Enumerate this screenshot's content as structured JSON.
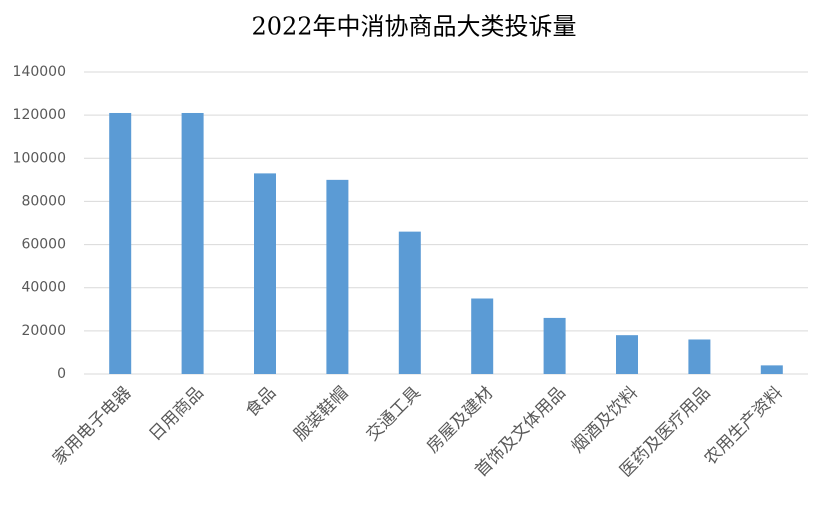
{
  "chart_data": {
    "type": "bar",
    "title": "2022年中消协商品大类投诉量",
    "categories": [
      "家用电子电器",
      "日用商品",
      "食品",
      "服装鞋帽",
      "交通工具",
      "房屋及建材",
      "首饰及文体用品",
      "烟酒及饮料",
      "医药及医疗用品",
      "农用生产资料"
    ],
    "values": [
      121000,
      121000,
      93000,
      90000,
      66000,
      35000,
      26000,
      18000,
      16000,
      4000
    ],
    "color": "#5b9bd5",
    "ylim": [
      0,
      140000
    ],
    "yticks": [
      0,
      20000,
      40000,
      60000,
      80000,
      100000,
      120000,
      140000
    ],
    "grid": true
  }
}
